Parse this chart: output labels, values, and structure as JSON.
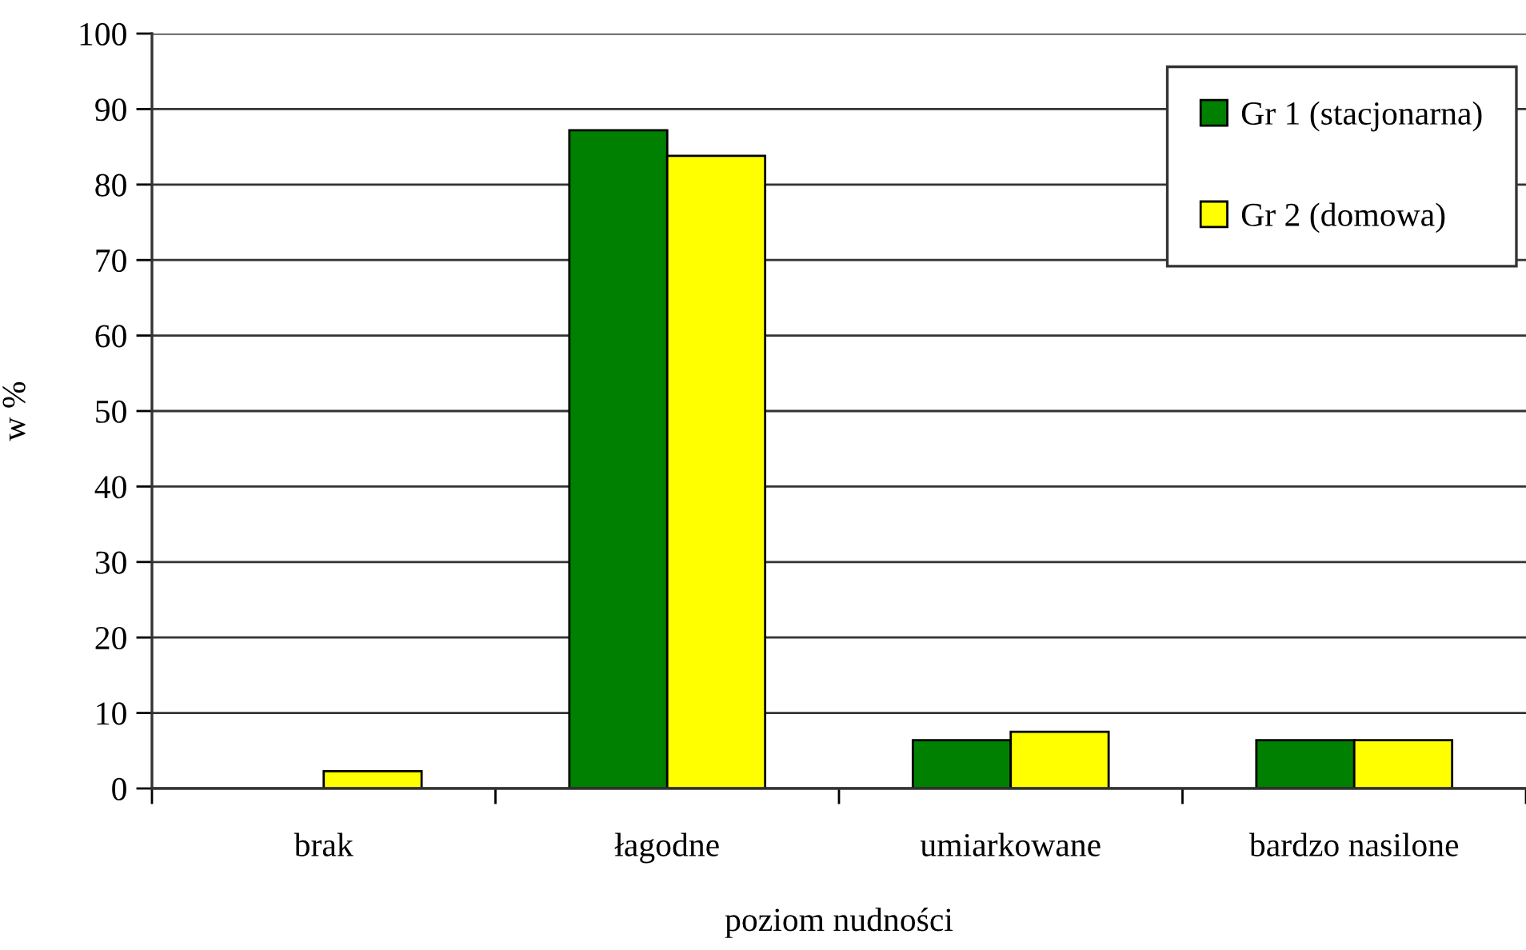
{
  "chart_data": {
    "type": "bar",
    "xlabel": "poziom nudności",
    "ylabel": "w %",
    "categories": [
      "brak",
      "łagodne",
      "umiarkowane",
      "bardzo nasilone"
    ],
    "series": [
      {
        "name": "Gr 1 (stacjonarna)",
        "color": "#008000",
        "values": [
          null,
          87.2,
          6.4,
          6.4
        ]
      },
      {
        "name": "Gr 2 (domowa)",
        "color": "#ffff00",
        "values": [
          2.3,
          83.8,
          7.5,
          6.4
        ]
      }
    ],
    "ylim": [
      0,
      100
    ],
    "yticks": [
      0,
      10,
      20,
      30,
      40,
      50,
      60,
      70,
      80,
      90,
      100
    ],
    "grid": "y",
    "legend": "top right"
  }
}
